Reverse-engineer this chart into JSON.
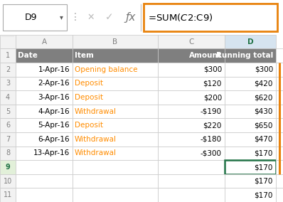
{
  "formula_bar_cell": "D9",
  "formula_bar_formula": "=SUM($C$2:C9)",
  "col_headers": [
    "A",
    "B",
    "C",
    "D"
  ],
  "header_row": [
    "Date",
    "Item",
    "Amount",
    "Running total"
  ],
  "data_rows": [
    [
      "1-Apr-16",
      "Opening balance",
      "$300",
      "$300"
    ],
    [
      "2-Apr-16",
      "Deposit",
      "$120",
      "$420"
    ],
    [
      "3-Apr-16",
      "Deposit",
      "$200",
      "$620"
    ],
    [
      "4-Apr-16",
      "Withdrawal",
      "-$190",
      "$430"
    ],
    [
      "5-Apr-16",
      "Deposit",
      "$220",
      "$650"
    ],
    [
      "6-Apr-16",
      "Withdrawal",
      "-$180",
      "$470"
    ],
    [
      "13-Apr-16",
      "Withdrawal",
      "-$300",
      "$170"
    ]
  ],
  "extra_rows_vals": [
    "$170",
    "$170",
    "$170"
  ],
  "header_bg": "#7F7F7F",
  "header_fg": "#FFFFFF",
  "col_header_bg": "#F2F2F2",
  "col_header_fg": "#808080",
  "selected_col_header_fg": "#217346",
  "selected_col_header_bg": "#D6E4F0",
  "item_color": "#FF8C00",
  "grid_color": "#C8C8C8",
  "formula_bar_border": "#E8820C",
  "cell_border_selected": "#217346",
  "arrow_color": "#E8820C",
  "row9_rn_bg": "#E2F0D9",
  "figsize": [
    3.98,
    2.84
  ],
  "dpi": 100
}
